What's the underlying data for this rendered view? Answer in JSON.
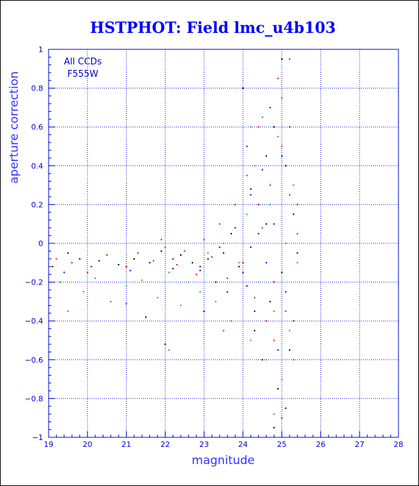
{
  "chart_data": {
    "type": "scatter",
    "title": "HSTPHOT: Field lmc_u4b103",
    "xlabel": "magnitude",
    "ylabel": "aperture correction",
    "xlim": [
      19,
      28
    ],
    "ylim": [
      -1,
      1
    ],
    "x_ticks": [
      19,
      20,
      21,
      22,
      23,
      24,
      25,
      26,
      27,
      28
    ],
    "y_ticks": [
      -1,
      -0.8,
      -0.6,
      -0.4,
      -0.2,
      0,
      0.2,
      0.4,
      0.6,
      0.8,
      1
    ],
    "x_tick_labels": [
      "19",
      "20",
      "21",
      "22",
      "23",
      "24",
      "25",
      "26",
      "27",
      "28"
    ],
    "y_tick_labels": [
      "−1",
      "−0.8",
      "−0.6",
      "−0.4",
      "−0.2",
      "0",
      "0.2",
      "0.4",
      "0.6",
      "0.8",
      "1"
    ],
    "grid": true,
    "annotations": [
      "All CCDs",
      "F555W"
    ],
    "series_colors": [
      "#000000",
      "#ff0000",
      "#00cc00",
      "#0000ff"
    ],
    "points": {
      "black": [
        [
          19.1,
          -0.12
        ],
        [
          19.5,
          -0.05
        ],
        [
          19.8,
          -0.08
        ],
        [
          20.3,
          -0.09
        ],
        [
          20.8,
          -0.11
        ],
        [
          21.2,
          -0.08
        ],
        [
          21.6,
          -0.1
        ],
        [
          21.9,
          -0.04
        ],
        [
          22.2,
          -0.13
        ],
        [
          22.4,
          -0.06
        ],
        [
          22.7,
          -0.1
        ],
        [
          22.9,
          -0.14
        ],
        [
          23.1,
          -0.08
        ],
        [
          23.3,
          -0.2
        ],
        [
          23.5,
          -0.05
        ],
        [
          23.7,
          0.05
        ],
        [
          23.9,
          -0.12
        ],
        [
          24.0,
          0.8
        ],
        [
          24.1,
          -0.22
        ],
        [
          24.2,
          0.28
        ],
        [
          24.3,
          -0.45
        ],
        [
          24.4,
          0.2
        ],
        [
          24.5,
          -0.6
        ],
        [
          24.6,
          0.45
        ],
        [
          24.7,
          -0.3
        ],
        [
          24.8,
          0.6
        ],
        [
          24.9,
          -0.75
        ],
        [
          25.0,
          0.95
        ],
        [
          25.0,
          -0.15
        ],
        [
          25.1,
          0.4
        ],
        [
          25.2,
          -0.55
        ],
        [
          25.3,
          0.15
        ],
        [
          25.4,
          -0.05
        ],
        [
          24.8,
          -0.95
        ],
        [
          25.1,
          -0.85
        ],
        [
          22.0,
          -0.52
        ],
        [
          21.5,
          -0.38
        ],
        [
          23.0,
          -0.35
        ],
        [
          24.6,
          0.1
        ],
        [
          24.2,
          -0.02
        ]
      ],
      "red": [
        [
          19.2,
          -0.08
        ],
        [
          19.6,
          -0.1
        ],
        [
          20.0,
          -0.15
        ],
        [
          20.5,
          -0.06
        ],
        [
          21.0,
          -0.12
        ],
        [
          21.3,
          -0.05
        ],
        [
          21.7,
          -0.09
        ],
        [
          22.0,
          -0.02
        ],
        [
          22.3,
          -0.11
        ],
        [
          22.5,
          -0.04
        ],
        [
          22.8,
          -0.16
        ],
        [
          23.0,
          0.02
        ],
        [
          23.2,
          -0.07
        ],
        [
          23.4,
          0.1
        ],
        [
          23.6,
          -0.18
        ],
        [
          23.8,
          0.2
        ],
        [
          24.0,
          -0.1
        ],
        [
          24.1,
          0.35
        ],
        [
          24.3,
          -0.28
        ],
        [
          24.4,
          0.6
        ],
        [
          24.5,
          0.08
        ],
        [
          24.6,
          -0.4
        ],
        [
          24.7,
          0.3
        ],
        [
          24.8,
          -0.2
        ],
        [
          24.9,
          0.85
        ],
        [
          25.0,
          0.5
        ],
        [
          25.1,
          -0.35
        ],
        [
          25.2,
          0.25
        ],
        [
          25.3,
          -0.6
        ],
        [
          25.4,
          0.05
        ],
        [
          21.0,
          -0.31
        ],
        [
          21.9,
          0.02
        ],
        [
          23.5,
          -0.45
        ],
        [
          24.8,
          -0.5
        ],
        [
          25.2,
          0.95
        ]
      ],
      "green": [
        [
          19.3,
          -0.2
        ],
        [
          19.5,
          -0.35
        ],
        [
          19.9,
          -0.25
        ],
        [
          20.2,
          -0.18
        ],
        [
          20.6,
          -0.3
        ],
        [
          21.0,
          -0.22
        ],
        [
          21.4,
          -0.19
        ],
        [
          21.8,
          -0.28
        ],
        [
          22.1,
          -0.15
        ],
        [
          22.4,
          -0.32
        ],
        [
          22.6,
          -0.2
        ],
        [
          22.9,
          -0.25
        ],
        [
          23.1,
          -0.05
        ],
        [
          23.3,
          -0.3
        ],
        [
          23.5,
          0.0
        ],
        [
          23.7,
          -0.4
        ],
        [
          23.9,
          -0.1
        ],
        [
          24.1,
          0.15
        ],
        [
          24.2,
          -0.5
        ],
        [
          24.3,
          0.4
        ],
        [
          24.4,
          -0.2
        ],
        [
          24.5,
          0.65
        ],
        [
          24.6,
          -0.6
        ],
        [
          24.7,
          0.2
        ],
        [
          24.8,
          -0.35
        ],
        [
          24.9,
          0.55
        ],
        [
          25.0,
          -0.7
        ],
        [
          25.1,
          0.0
        ],
        [
          25.2,
          -0.45
        ],
        [
          25.3,
          0.3
        ],
        [
          25.4,
          -0.1
        ],
        [
          24.8,
          -0.88
        ],
        [
          22.1,
          -0.55
        ],
        [
          25.0,
          0.75
        ],
        [
          24.2,
          0.6
        ]
      ],
      "blue": [
        [
          19.4,
          -0.15
        ],
        [
          20.1,
          -0.12
        ],
        [
          21.1,
          -0.14
        ],
        [
          22.2,
          -0.08
        ],
        [
          22.9,
          -0.12
        ],
        [
          23.4,
          -0.02
        ],
        [
          23.8,
          0.08
        ],
        [
          24.0,
          -0.15
        ],
        [
          24.2,
          0.25
        ],
        [
          24.3,
          -0.35
        ],
        [
          24.5,
          0.38
        ],
        [
          24.6,
          -0.1
        ],
        [
          24.7,
          0.7
        ],
        [
          24.8,
          0.1
        ],
        [
          24.9,
          -0.55
        ],
        [
          25.0,
          0.45
        ],
        [
          25.1,
          -0.25
        ],
        [
          25.2,
          0.6
        ],
        [
          25.3,
          -0.4
        ],
        [
          25.4,
          0.2
        ],
        [
          24.4,
          0.05
        ],
        [
          23.6,
          -0.25
        ],
        [
          25.0,
          -0.9
        ],
        [
          24.1,
          0.5
        ]
      ]
    }
  }
}
